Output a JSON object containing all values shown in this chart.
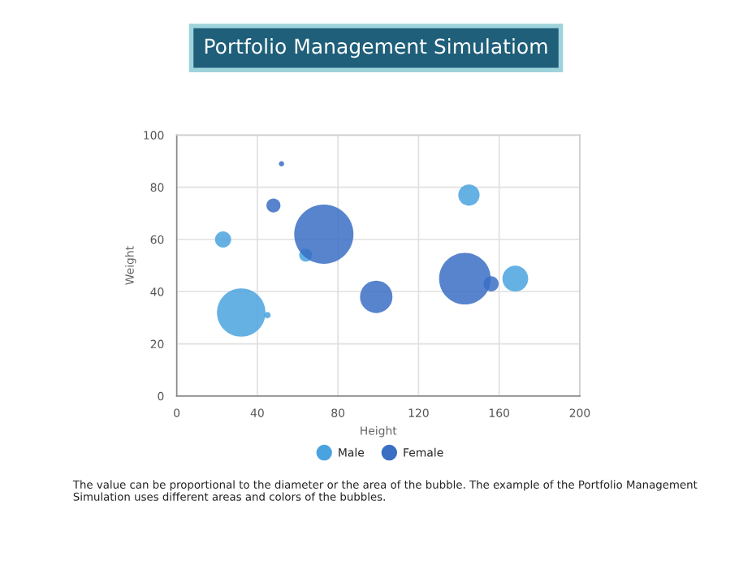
{
  "chart_data": {
    "type": "bubble",
    "title": "Portfolio Management Simulatiom",
    "xlabel": "Height",
    "ylabel": "Weight",
    "xlim": [
      0,
      200
    ],
    "xticks": [
      0,
      40,
      80,
      120,
      160,
      200
    ],
    "ylim": [
      0,
      100
    ],
    "yticks": [
      0,
      20,
      40,
      60,
      80,
      100
    ],
    "grid": true,
    "legend": "bottom",
    "marker": "circle",
    "series": [
      {
        "name": "Male",
        "color": "#4aa3df",
        "x": [
          23,
          145,
          32,
          64,
          45,
          168
        ],
        "values": [
          60,
          77,
          32,
          54,
          31,
          45
        ],
        "sizes": [
          0.074,
          0.13,
          0.67,
          0.048,
          0.012,
          0.19
        ]
      },
      {
        "name": "Female",
        "color": "#3a6fc4",
        "x": [
          52,
          48,
          73,
          99,
          143,
          156
        ],
        "values": [
          89,
          73,
          62,
          38,
          45,
          43
        ],
        "sizes": [
          0.008,
          0.056,
          1,
          0.3,
          0.76,
          0.065
        ]
      }
    ],
    "annotations": [
      "The value can be proportional to the diameter or the area of the bubble. The example of the Portfolio Management Simulation uses different areas and colors of the bubbles."
    ]
  }
}
